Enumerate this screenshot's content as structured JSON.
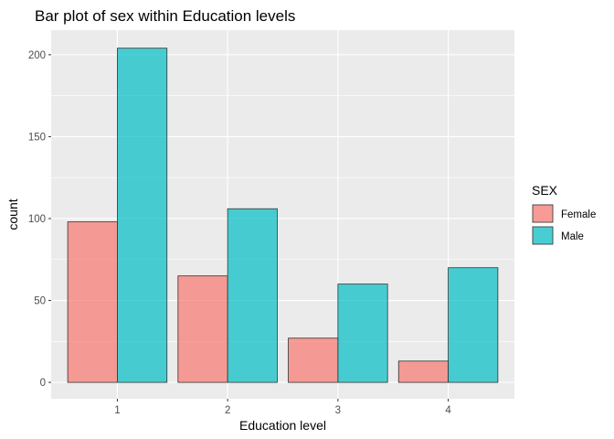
{
  "chart_data": {
    "type": "bar",
    "title": "Bar plot of sex within Education levels",
    "xlabel": "Education level",
    "ylabel": "count",
    "categories": [
      "1",
      "2",
      "3",
      "4"
    ],
    "series": [
      {
        "name": "Female",
        "color": "#F8766D",
        "values": [
          98,
          65,
          27,
          13
        ]
      },
      {
        "name": "Male",
        "color": "#00BFC4",
        "values": [
          204,
          106,
          60,
          70
        ]
      }
    ],
    "ylim": [
      -10,
      215
    ],
    "yticks": [
      0,
      50,
      100,
      150,
      200
    ],
    "yticklabels": [
      "0",
      "50",
      "100",
      "150",
      "200"
    ],
    "legend": {
      "title": "SEX",
      "position": "right"
    },
    "grid": true,
    "panel_background": "#EBEBEB",
    "bar_opacity": 0.7
  }
}
